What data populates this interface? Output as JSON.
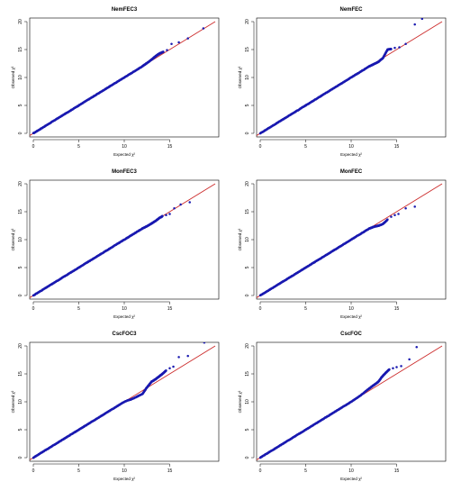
{
  "chart_data": [
    {
      "type": "scatter",
      "title": "NemFEC3",
      "xlabel": "Expected χ²",
      "ylabel": "Observed χ²",
      "xlim": [
        0,
        20
      ],
      "ylim": [
        0,
        20
      ],
      "xticks": [
        "0",
        "5",
        "10",
        "15"
      ],
      "yticks": [
        "0",
        "5",
        "10",
        "15",
        "20"
      ],
      "reference_line": {
        "slope": 1,
        "intercept": 0,
        "color": "#cc2a2a"
      },
      "point_color": "#1a1ab0",
      "series": [
        {
          "x": [
            0,
            1,
            2,
            3,
            4,
            5,
            6,
            7,
            8,
            9,
            10,
            11,
            12,
            12.5,
            13,
            13.3,
            13.6,
            13.9,
            14.3,
            14.7,
            15.2,
            16.0,
            17.0,
            18.7
          ],
          "y": [
            0,
            1,
            2,
            3,
            4,
            5,
            6,
            7,
            8,
            9,
            10,
            11,
            12,
            12.6,
            13.2,
            13.6,
            14.0,
            14.3,
            14.6,
            14.9,
            16.0,
            16.3,
            17.0,
            18.8
          ]
        }
      ]
    },
    {
      "type": "scatter",
      "title": "NemFEC",
      "xlabel": "Expected χ²",
      "ylabel": "Observed χ²",
      "xlim": [
        0,
        20
      ],
      "ylim": [
        0,
        20
      ],
      "xticks": [
        "0",
        "5",
        "10",
        "15"
      ],
      "yticks": [
        "0",
        "5",
        "10",
        "15",
        "20"
      ],
      "reference_line": {
        "slope": 1,
        "intercept": 0,
        "color": "#cc2a2a"
      },
      "point_color": "#1a1ab0",
      "series": [
        {
          "x": [
            0,
            1,
            2,
            3,
            4,
            5,
            6,
            7,
            8,
            9,
            10,
            11,
            12,
            12.5,
            13,
            13.5,
            14.0,
            14.4,
            14.8,
            15.3,
            16.0,
            17.0,
            17.8
          ],
          "y": [
            0,
            1,
            2,
            3,
            4,
            5,
            6,
            7,
            8,
            9,
            10,
            11,
            12,
            12.4,
            12.8,
            13.5,
            15.0,
            15.1,
            15.3,
            15.4,
            16.0,
            19.5,
            20.5
          ]
        }
      ]
    },
    {
      "type": "scatter",
      "title": "MonFEC3",
      "xlabel": "Expected χ²",
      "ylabel": "Observed χ²",
      "xlim": [
        0,
        20
      ],
      "ylim": [
        0,
        20
      ],
      "xticks": [
        "0",
        "5",
        "10",
        "15"
      ],
      "yticks": [
        "0",
        "5",
        "10",
        "15",
        "20"
      ],
      "reference_line": {
        "slope": 1,
        "intercept": 0,
        "color": "#cc2a2a"
      },
      "point_color": "#1a1ab0",
      "series": [
        {
          "x": [
            0,
            1,
            2,
            3,
            4,
            5,
            6,
            7,
            8,
            9,
            10,
            11,
            12,
            12.5,
            13,
            13.4,
            13.8,
            14.2,
            14.6,
            15.0,
            15.5,
            16.2,
            17.2
          ],
          "y": [
            0,
            1,
            2,
            3,
            4,
            5,
            6,
            7,
            8,
            9,
            10,
            11,
            12,
            12.4,
            12.9,
            13.3,
            13.8,
            14.2,
            14.4,
            14.6,
            15.6,
            16.3,
            16.7
          ]
        }
      ]
    },
    {
      "type": "scatter",
      "title": "MonFEC",
      "xlabel": "Expected χ²",
      "ylabel": "Observed χ²",
      "xlim": [
        0,
        20
      ],
      "ylim": [
        0,
        20
      ],
      "xticks": [
        "0",
        "5",
        "10",
        "15"
      ],
      "yticks": [
        "0",
        "5",
        "10",
        "15",
        "20"
      ],
      "reference_line": {
        "slope": 1,
        "intercept": 0,
        "color": "#cc2a2a"
      },
      "point_color": "#1a1ab0",
      "series": [
        {
          "x": [
            0,
            1,
            2,
            3,
            4,
            5,
            6,
            7,
            8,
            9,
            10,
            11,
            12,
            12.5,
            13,
            13.5,
            14.0,
            14.4,
            14.8,
            15.2,
            16.0,
            17.0
          ],
          "y": [
            0,
            1,
            2,
            3,
            4,
            5,
            6,
            7,
            8,
            9,
            10,
            11,
            12,
            12.3,
            12.5,
            12.8,
            13.6,
            14.1,
            14.4,
            14.6,
            15.6,
            15.9
          ]
        }
      ]
    },
    {
      "type": "scatter",
      "title": "CscFOC3",
      "xlabel": "Expected χ²",
      "ylabel": "Observed χ²",
      "xlim": [
        0,
        20
      ],
      "ylim": [
        0,
        20
      ],
      "xticks": [
        "0",
        "5",
        "10",
        "15"
      ],
      "yticks": [
        "0",
        "5",
        "10",
        "15",
        "20"
      ],
      "reference_line": {
        "slope": 1,
        "intercept": 0,
        "color": "#cc2a2a"
      },
      "point_color": "#1a1ab0",
      "series": [
        {
          "x": [
            0,
            1,
            2,
            3,
            4,
            5,
            6,
            7,
            8,
            9,
            10,
            11,
            12,
            12.5,
            13,
            13.4,
            13.8,
            14.2,
            14.6,
            15.0,
            15.4,
            16.0,
            17.0,
            18.8
          ],
          "y": [
            0,
            1,
            2,
            3,
            4,
            5,
            6,
            7,
            8,
            9,
            10,
            10.6,
            11.4,
            12.6,
            13.6,
            14.0,
            14.5,
            15.0,
            15.6,
            16.0,
            16.3,
            18.0,
            18.2,
            20.6
          ]
        }
      ]
    },
    {
      "type": "scatter",
      "title": "CscFOC",
      "xlabel": "Expected χ²",
      "ylabel": "Observed χ²",
      "xlim": [
        0,
        20
      ],
      "ylim": [
        0,
        20
      ],
      "xticks": [
        "0",
        "5",
        "10",
        "15"
      ],
      "yticks": [
        "0",
        "5",
        "10",
        "15",
        "20"
      ],
      "reference_line": {
        "slope": 1,
        "intercept": 0,
        "color": "#cc2a2a"
      },
      "point_color": "#1a1ab0",
      "series": [
        {
          "x": [
            0,
            1,
            2,
            3,
            4,
            5,
            6,
            7,
            8,
            9,
            10,
            11,
            12,
            12.5,
            13,
            13.4,
            13.8,
            14.2,
            14.6,
            15.0,
            15.5,
            16.4,
            17.2
          ],
          "y": [
            0,
            1,
            2,
            3,
            4,
            5,
            6,
            7,
            8,
            9,
            10,
            11.1,
            12.4,
            13.0,
            13.6,
            14.5,
            15.2,
            15.8,
            16.0,
            16.2,
            16.4,
            17.6,
            19.8
          ]
        }
      ]
    }
  ]
}
